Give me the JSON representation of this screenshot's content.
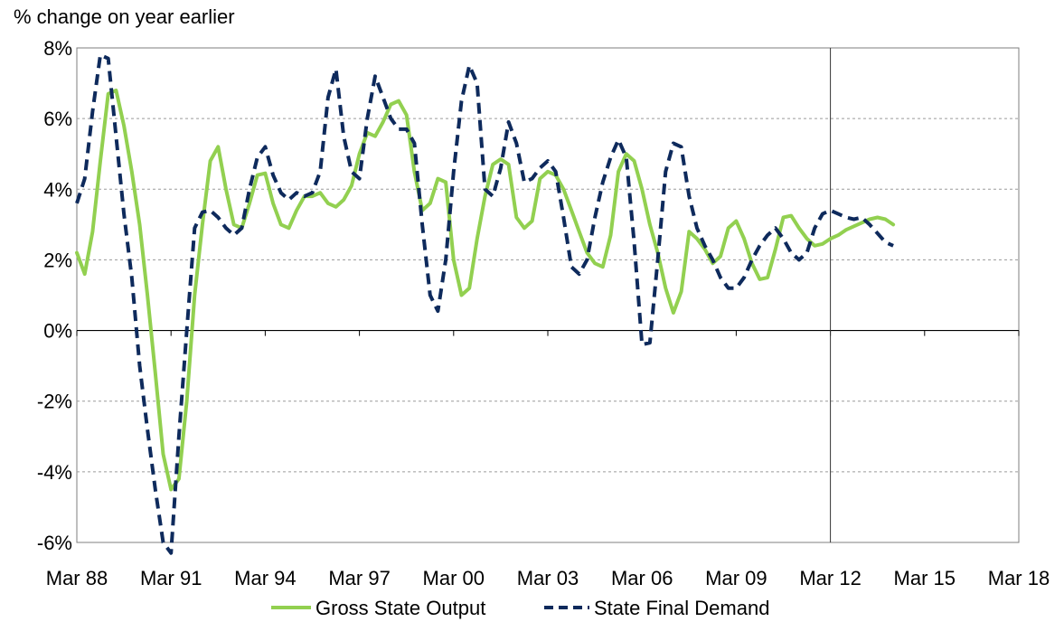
{
  "chart_data": {
    "type": "line",
    "ylabel": "% change on year earlier",
    "xlabel": "",
    "ylim": [
      -6,
      8
    ],
    "yticks": [
      8,
      6,
      4,
      2,
      0,
      -2,
      -4,
      -6
    ],
    "ytick_labels": [
      "8%",
      "6%",
      "4%",
      "2%",
      "0%",
      "-2%",
      "-4%",
      "-6%"
    ],
    "xlim": [
      1988.0,
      2018.0
    ],
    "xticks": [
      1988,
      1991,
      1994,
      1997,
      2000,
      2003,
      2006,
      2009,
      2012,
      2015,
      2018
    ],
    "xtick_labels": [
      "Mar 88",
      "Mar 91",
      "Mar 94",
      "Mar 97",
      "Mar 00",
      "Mar 03",
      "Mar 06",
      "Mar 09",
      "Mar 12",
      "Mar 15",
      "Mar 18"
    ],
    "grid": "horizontal dashed",
    "vertical_marker": {
      "x": 2012
    },
    "legend_position": "bottom",
    "series": [
      {
        "name": "Gross State Output",
        "color": "#92d050",
        "style": "solid",
        "points": [
          [
            1988.0,
            2.2
          ],
          [
            1988.25,
            1.6
          ],
          [
            1988.5,
            2.8
          ],
          [
            1988.75,
            4.8
          ],
          [
            1989.0,
            6.7
          ],
          [
            1989.25,
            6.8
          ],
          [
            1989.5,
            5.8
          ],
          [
            1989.75,
            4.5
          ],
          [
            1990.0,
            3.0
          ],
          [
            1990.25,
            1.0
          ],
          [
            1990.5,
            -1.2
          ],
          [
            1990.75,
            -3.5
          ],
          [
            1991.0,
            -4.5
          ],
          [
            1991.25,
            -4.2
          ],
          [
            1991.5,
            -2.0
          ],
          [
            1991.75,
            1.0
          ],
          [
            1992.0,
            3.0
          ],
          [
            1992.25,
            4.8
          ],
          [
            1992.5,
            5.2
          ],
          [
            1992.75,
            4.0
          ],
          [
            1993.0,
            3.0
          ],
          [
            1993.25,
            2.9
          ],
          [
            1993.5,
            3.6
          ],
          [
            1993.75,
            4.4
          ],
          [
            1994.0,
            4.45
          ],
          [
            1994.25,
            3.6
          ],
          [
            1994.5,
            3.0
          ],
          [
            1994.75,
            2.9
          ],
          [
            1995.0,
            3.4
          ],
          [
            1995.25,
            3.8
          ],
          [
            1995.5,
            3.8
          ],
          [
            1995.75,
            3.9
          ],
          [
            1996.0,
            3.6
          ],
          [
            1996.25,
            3.5
          ],
          [
            1996.5,
            3.7
          ],
          [
            1996.75,
            4.1
          ],
          [
            1997.0,
            5.0
          ],
          [
            1997.25,
            5.6
          ],
          [
            1997.5,
            5.5
          ],
          [
            1997.75,
            5.9
          ],
          [
            1998.0,
            6.4
          ],
          [
            1998.25,
            6.5
          ],
          [
            1998.5,
            6.1
          ],
          [
            1998.75,
            4.5
          ],
          [
            1999.0,
            3.4
          ],
          [
            1999.25,
            3.6
          ],
          [
            1999.5,
            4.3
          ],
          [
            1999.75,
            4.2
          ],
          [
            2000.0,
            2.0
          ],
          [
            2000.25,
            1.0
          ],
          [
            2000.5,
            1.2
          ],
          [
            2000.75,
            2.6
          ],
          [
            2001.0,
            3.8
          ],
          [
            2001.25,
            4.7
          ],
          [
            2001.5,
            4.85
          ],
          [
            2001.75,
            4.7
          ],
          [
            2002.0,
            3.2
          ],
          [
            2002.25,
            2.9
          ],
          [
            2002.5,
            3.1
          ],
          [
            2002.75,
            4.3
          ],
          [
            2003.0,
            4.5
          ],
          [
            2003.25,
            4.4
          ],
          [
            2003.5,
            4.0
          ],
          [
            2003.75,
            3.4
          ],
          [
            2004.0,
            2.8
          ],
          [
            2004.25,
            2.2
          ],
          [
            2004.5,
            1.9
          ],
          [
            2004.75,
            1.8
          ],
          [
            2005.0,
            2.7
          ],
          [
            2005.25,
            4.5
          ],
          [
            2005.5,
            5.0
          ],
          [
            2005.75,
            4.8
          ],
          [
            2006.0,
            4.0
          ],
          [
            2006.25,
            3.0
          ],
          [
            2006.5,
            2.2
          ],
          [
            2006.75,
            1.2
          ],
          [
            2007.0,
            0.5
          ],
          [
            2007.25,
            1.1
          ],
          [
            2007.5,
            2.8
          ],
          [
            2007.75,
            2.6
          ],
          [
            2008.0,
            2.3
          ],
          [
            2008.25,
            1.9
          ],
          [
            2008.5,
            2.1
          ],
          [
            2008.75,
            2.9
          ],
          [
            2009.0,
            3.1
          ],
          [
            2009.25,
            2.6
          ],
          [
            2009.5,
            1.9
          ],
          [
            2009.75,
            1.45
          ],
          [
            2010.0,
            1.5
          ],
          [
            2010.25,
            2.3
          ],
          [
            2010.5,
            3.2
          ],
          [
            2010.75,
            3.25
          ],
          [
            2011.0,
            2.9
          ],
          [
            2011.25,
            2.6
          ],
          [
            2011.5,
            2.4
          ],
          [
            2011.75,
            2.45
          ],
          [
            2012.0,
            2.6
          ],
          [
            2012.25,
            2.7
          ],
          [
            2012.5,
            2.85
          ],
          [
            2012.75,
            2.95
          ],
          [
            2013.0,
            3.05
          ],
          [
            2013.25,
            3.15
          ],
          [
            2013.5,
            3.2
          ],
          [
            2013.75,
            3.15
          ],
          [
            2014.0,
            3.0
          ]
        ]
      },
      {
        "name": "State Final Demand",
        "color": "#0e2a5c",
        "style": "dashed",
        "points": [
          [
            1988.0,
            3.6
          ],
          [
            1988.25,
            4.3
          ],
          [
            1988.5,
            6.2
          ],
          [
            1988.75,
            7.8
          ],
          [
            1989.0,
            7.7
          ],
          [
            1989.25,
            5.5
          ],
          [
            1989.5,
            3.3
          ],
          [
            1989.75,
            1.5
          ],
          [
            1990.0,
            -1.0
          ],
          [
            1990.25,
            -2.8
          ],
          [
            1990.5,
            -4.5
          ],
          [
            1990.75,
            -6.0
          ],
          [
            1991.0,
            -6.3
          ],
          [
            1991.25,
            -3.0
          ],
          [
            1991.5,
            0.0
          ],
          [
            1991.75,
            2.9
          ],
          [
            1992.0,
            3.35
          ],
          [
            1992.25,
            3.4
          ],
          [
            1992.5,
            3.2
          ],
          [
            1992.75,
            2.9
          ],
          [
            1993.0,
            2.7
          ],
          [
            1993.25,
            2.9
          ],
          [
            1993.5,
            4.0
          ],
          [
            1993.75,
            4.9
          ],
          [
            1994.0,
            5.2
          ],
          [
            1994.25,
            4.4
          ],
          [
            1994.5,
            3.9
          ],
          [
            1994.75,
            3.7
          ],
          [
            1995.0,
            3.9
          ],
          [
            1995.25,
            3.8
          ],
          [
            1995.5,
            3.9
          ],
          [
            1995.75,
            4.5
          ],
          [
            1996.0,
            6.6
          ],
          [
            1996.25,
            7.4
          ],
          [
            1996.5,
            5.5
          ],
          [
            1996.75,
            4.5
          ],
          [
            1997.0,
            4.3
          ],
          [
            1997.25,
            6.0
          ],
          [
            1997.5,
            7.2
          ],
          [
            1997.75,
            6.6
          ],
          [
            1998.0,
            6.0
          ],
          [
            1998.25,
            5.7
          ],
          [
            1998.5,
            5.7
          ],
          [
            1998.75,
            5.3
          ],
          [
            1999.0,
            3.0
          ],
          [
            1999.25,
            1.0
          ],
          [
            1999.5,
            0.55
          ],
          [
            1999.75,
            2.0
          ],
          [
            2000.0,
            4.5
          ],
          [
            2000.25,
            6.5
          ],
          [
            2000.5,
            7.5
          ],
          [
            2000.75,
            7.0
          ],
          [
            2001.0,
            4.0
          ],
          [
            2001.25,
            3.8
          ],
          [
            2001.5,
            4.6
          ],
          [
            2001.75,
            5.9
          ],
          [
            2002.0,
            5.3
          ],
          [
            2002.25,
            4.2
          ],
          [
            2002.5,
            4.3
          ],
          [
            2002.75,
            4.6
          ],
          [
            2003.0,
            4.8
          ],
          [
            2003.25,
            4.5
          ],
          [
            2003.5,
            3.2
          ],
          [
            2003.75,
            1.8
          ],
          [
            2004.0,
            1.6
          ],
          [
            2004.25,
            2.0
          ],
          [
            2004.5,
            3.2
          ],
          [
            2004.75,
            4.2
          ],
          [
            2005.0,
            4.9
          ],
          [
            2005.25,
            5.4
          ],
          [
            2005.5,
            4.9
          ],
          [
            2005.75,
            2.5
          ],
          [
            2006.0,
            -0.4
          ],
          [
            2006.25,
            -0.35
          ],
          [
            2006.5,
            2.0
          ],
          [
            2006.75,
            4.5
          ],
          [
            2007.0,
            5.3
          ],
          [
            2007.25,
            5.2
          ],
          [
            2007.5,
            3.8
          ],
          [
            2007.75,
            2.9
          ],
          [
            2008.0,
            2.4
          ],
          [
            2008.25,
            2.0
          ],
          [
            2008.5,
            1.5
          ],
          [
            2008.75,
            1.2
          ],
          [
            2009.0,
            1.2
          ],
          [
            2009.25,
            1.5
          ],
          [
            2009.5,
            2.0
          ],
          [
            2009.75,
            2.4
          ],
          [
            2010.0,
            2.7
          ],
          [
            2010.25,
            2.9
          ],
          [
            2010.5,
            2.6
          ],
          [
            2010.75,
            2.2
          ],
          [
            2011.0,
            2.0
          ],
          [
            2011.25,
            2.2
          ],
          [
            2011.5,
            2.9
          ],
          [
            2011.75,
            3.3
          ],
          [
            2012.0,
            3.4
          ],
          [
            2012.25,
            3.3
          ],
          [
            2012.5,
            3.2
          ],
          [
            2012.75,
            3.15
          ],
          [
            2013.0,
            3.2
          ],
          [
            2013.25,
            3.0
          ],
          [
            2013.5,
            2.75
          ],
          [
            2013.75,
            2.5
          ],
          [
            2014.0,
            2.4
          ]
        ]
      }
    ]
  }
}
